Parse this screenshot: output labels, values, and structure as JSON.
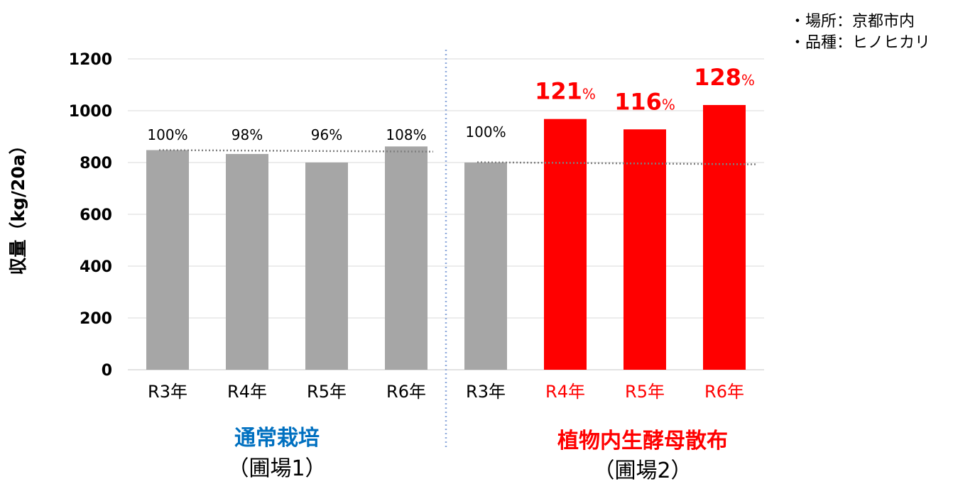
{
  "notes": [
    "・場所：京都市内",
    "・品種：ヒノヒカリ"
  ],
  "chart_data": {
    "type": "bar",
    "title": "",
    "ylabel": "収量（kg/20a）",
    "ylim": [
      0,
      1200
    ],
    "yticks": [
      "0",
      "200",
      "400",
      "600",
      "800",
      "1000",
      "1200"
    ],
    "grid": true,
    "colors": {
      "normal": "#a6a6a6",
      "treated": "#ff0000",
      "group1_title": "#0070c0",
      "group2_title": "#ff0000",
      "separator": "#8faadc",
      "trend": "#7f7f7f"
    },
    "groups": [
      {
        "title": "通常栽培",
        "subtitle": "（圃場1）",
        "categories": [
          "R3年",
          "R4年",
          "R5年",
          "R6年"
        ],
        "values": [
          848,
          833,
          800,
          862
        ],
        "labels": [
          "100%",
          "98%",
          "96%",
          "108%"
        ],
        "trend": [
          848,
          842
        ]
      },
      {
        "title": "植物内生酵母散布",
        "subtitle": "（圃場2）",
        "categories": [
          "R3年",
          "R4年",
          "R5年",
          "R6年"
        ],
        "values": [
          800,
          968,
          928,
          1022
        ],
        "labels": [
          "100%",
          "121%",
          "116%",
          "128%"
        ],
        "trend": [
          801,
          793
        ]
      }
    ]
  }
}
